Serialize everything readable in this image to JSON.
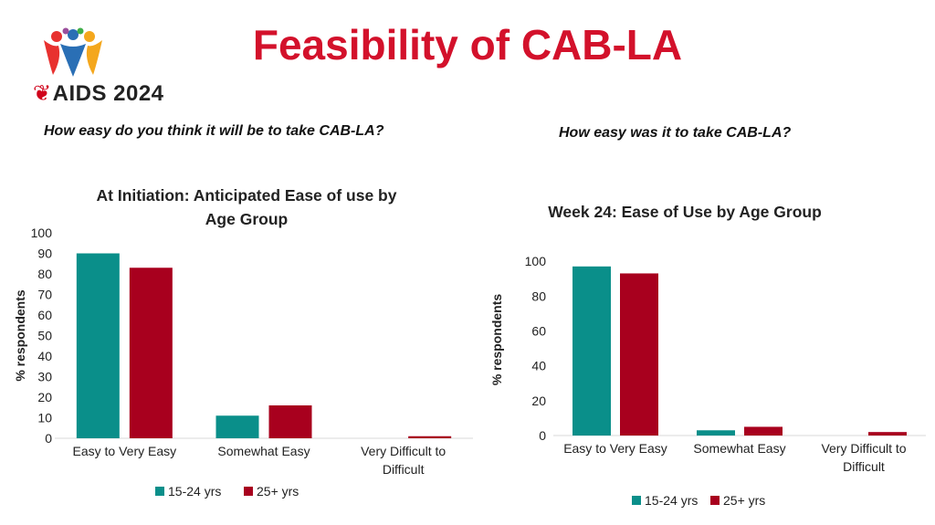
{
  "header": {
    "title": "Feasibility of CAB-LA",
    "logo": {
      "text": "AIDS 2024",
      "icon": "ribbon-icon"
    }
  },
  "questions": {
    "left": "How easy do you think it will be to take CAB-LA?",
    "right": "How easy was it to take CAB-LA?"
  },
  "colors": {
    "series1": "#0a8f8a",
    "series2": "#a8001e",
    "title": "#d3112b"
  },
  "chart_data": [
    {
      "type": "bar",
      "title": [
        "At Initiation: Anticipated Ease of use by",
        "Age Group"
      ],
      "ylabel": "% respondents",
      "xlabel": "",
      "ylim": [
        0,
        100
      ],
      "yticks": [
        0,
        10,
        20,
        30,
        40,
        50,
        60,
        70,
        80,
        90,
        100
      ],
      "categories": [
        [
          "Easy to Very Easy"
        ],
        [
          "Somewhat Easy"
        ],
        [
          "Very Difficult to",
          "Difficult"
        ]
      ],
      "series": [
        {
          "name": "15-24 yrs",
          "values": [
            90,
            11,
            0
          ]
        },
        {
          "name": "25+ yrs",
          "values": [
            83,
            16,
            1
          ]
        }
      ],
      "legend": "bottom",
      "grid": false
    },
    {
      "type": "bar",
      "title": [
        "Week 24: Ease of Use by Age Group"
      ],
      "ylabel": "% respondents",
      "xlabel": "",
      "ylim": [
        0,
        110
      ],
      "yticks": [
        0,
        20,
        40,
        60,
        80,
        100
      ],
      "categories": [
        [
          "Easy to Very Easy"
        ],
        [
          "Somewhat Easy"
        ],
        [
          "Very Difficult to",
          "Difficult"
        ]
      ],
      "series": [
        {
          "name": "15-24 yrs",
          "values": [
            97,
            3,
            0
          ]
        },
        {
          "name": "25+ yrs",
          "values": [
            93,
            5,
            2
          ]
        }
      ],
      "legend": "bottom",
      "grid": false
    }
  ]
}
